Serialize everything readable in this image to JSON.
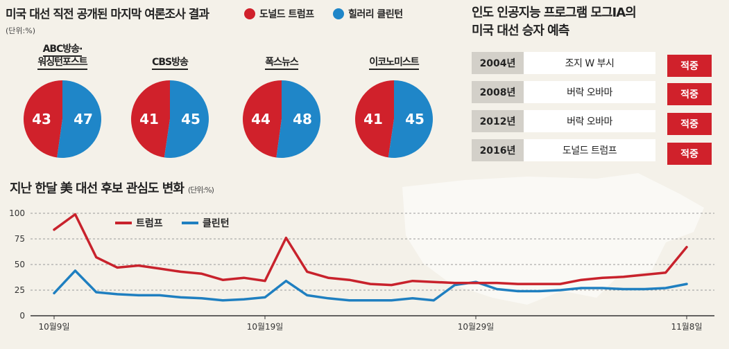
{
  "top": {
    "title": "미국 대선 직전 공개된 마지막 여론조사 결과",
    "unit": "(단위:%)",
    "legend": [
      {
        "name": "도널드 트럼프",
        "color": "#d0212b"
      },
      {
        "name": "힐러리 클린턴",
        "color": "#1f86c8"
      }
    ]
  },
  "prediction": {
    "title_line1": "인도 인공지능 프로그램 모그IA의",
    "title_line2": "미국 대선 승자 예측",
    "rows": [
      {
        "year": "2004년",
        "winner": "조지 W 부시",
        "result": "적중"
      },
      {
        "year": "2008년",
        "winner": "버락 오바마",
        "result": "적중"
      },
      {
        "year": "2012년",
        "winner": "버락 오바마",
        "result": "적중"
      },
      {
        "year": "2016년",
        "winner": "도널드 트럼프",
        "result": "적중"
      }
    ]
  },
  "line": {
    "title": "지난 한달 美 대선 후보 관심도 변화",
    "unit": "(단위:%)"
  },
  "chart_data": [
    {
      "type": "pie",
      "title": "ABC방송·워싱턴포스트",
      "title_lines": [
        "ABC방송·",
        "워싱턴포스트"
      ],
      "labels": [
        "도널드 트럼프",
        "힐러리 클린턴"
      ],
      "values": [
        43,
        47
      ],
      "colors": [
        "#d0212b",
        "#1f86c8"
      ]
    },
    {
      "type": "pie",
      "title": "CBS방송",
      "title_lines": [
        "CBS방송"
      ],
      "labels": [
        "도널드 트럼프",
        "힐러리 클린턴"
      ],
      "values": [
        41,
        45
      ],
      "colors": [
        "#d0212b",
        "#1f86c8"
      ]
    },
    {
      "type": "pie",
      "title": "폭스뉴스",
      "title_lines": [
        "폭스뉴스"
      ],
      "labels": [
        "도널드 트럼프",
        "힐러리 클린턴"
      ],
      "values": [
        44,
        48
      ],
      "colors": [
        "#d0212b",
        "#1f86c8"
      ]
    },
    {
      "type": "pie",
      "title": "이코노미스트",
      "title_lines": [
        "이코노미스트"
      ],
      "labels": [
        "도널드 트럼프",
        "힐러리 클린턴"
      ],
      "values": [
        41,
        45
      ],
      "colors": [
        "#d0212b",
        "#1f86c8"
      ]
    },
    {
      "type": "line",
      "title": "지난 한달 美 대선 후보 관심도 변화",
      "ylim": [
        0,
        100
      ],
      "yticks": [
        0,
        25,
        50,
        75,
        100
      ],
      "xlim": [
        0,
        30
      ],
      "xticks": [
        {
          "x": 0,
          "label": "10월9일"
        },
        {
          "x": 10,
          "label": "10월19일"
        },
        {
          "x": 20,
          "label": "10월29일"
        },
        {
          "x": 30,
          "label": "11월8일"
        }
      ],
      "x": [
        0,
        1,
        2,
        3,
        4,
        5,
        6,
        7,
        8,
        9,
        10,
        11,
        12,
        13,
        14,
        15,
        16,
        17,
        18,
        19,
        20,
        21,
        22,
        23,
        24,
        25,
        26,
        27,
        28,
        29,
        30
      ],
      "series": [
        {
          "name": "트럼프",
          "color": "#c8222c",
          "values": [
            84,
            99,
            57,
            47,
            49,
            46,
            43,
            41,
            35,
            37,
            34,
            76,
            43,
            37,
            35,
            31,
            30,
            34,
            33,
            32,
            32,
            32,
            31,
            31,
            31,
            35,
            37,
            38,
            40,
            42,
            67
          ]
        },
        {
          "name": "클린턴",
          "color": "#1f7fc0",
          "values": [
            22,
            44,
            23,
            21,
            20,
            20,
            18,
            17,
            15,
            16,
            18,
            34,
            20,
            17,
            15,
            15,
            15,
            17,
            15,
            30,
            33,
            26,
            24,
            24,
            25,
            27,
            27,
            26,
            26,
            27,
            31
          ]
        }
      ]
    }
  ]
}
